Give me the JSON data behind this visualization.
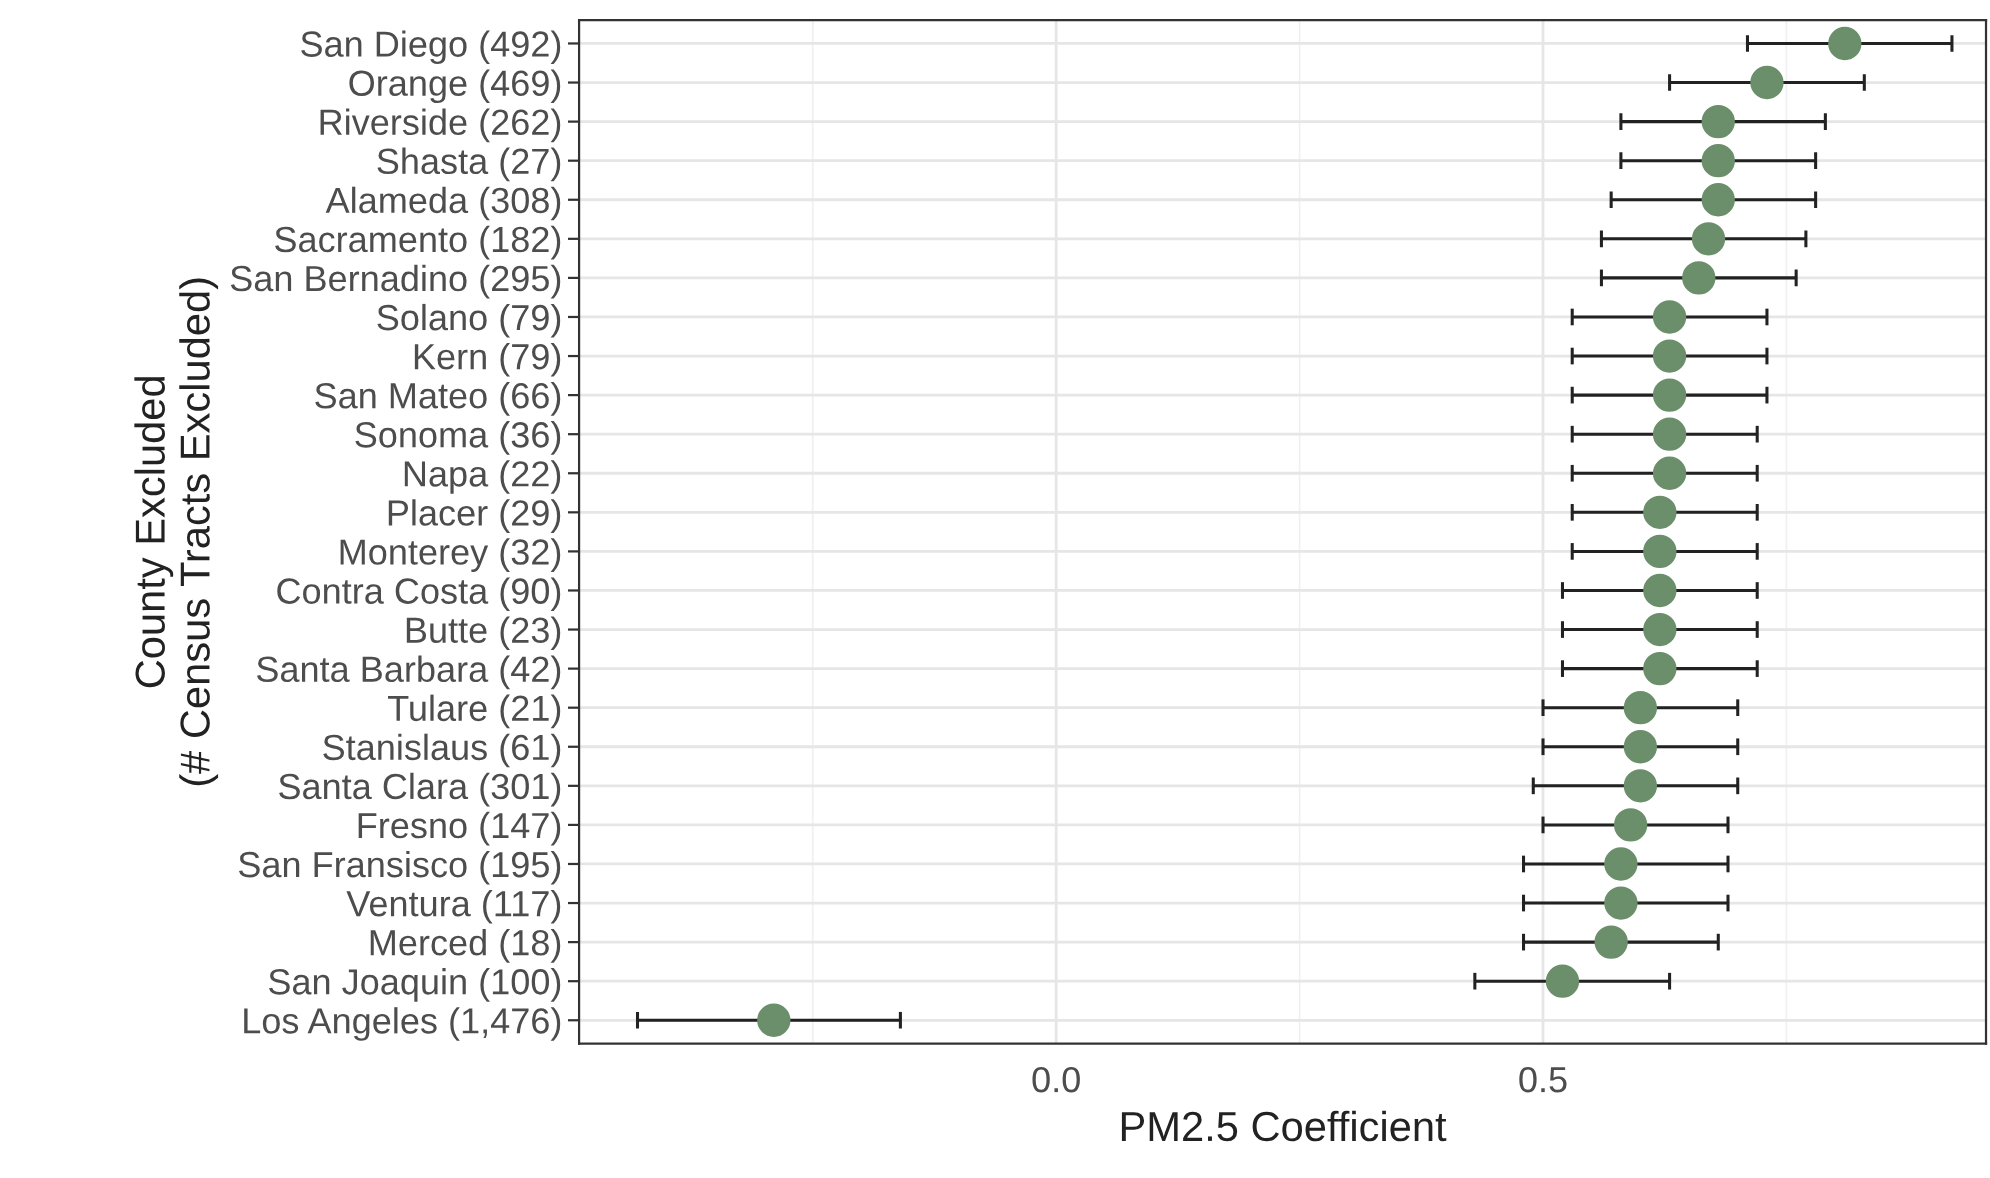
{
  "chart_data": {
    "type": "scatter",
    "orientation": "horizontal",
    "xlabel": "PM2.5 Coefficient",
    "ylabel": "County Excluded\n(# Census Tracts Excluded)",
    "categories": [
      "San Diego (492)",
      "Orange (469)",
      "Riverside (262)",
      "Shasta (27)",
      "Alameda (308)",
      "Sacramento (182)",
      "San Bernadino (295)",
      "Solano (79)",
      "Kern (79)",
      "San Mateo (66)",
      "Sonoma (36)",
      "Napa (22)",
      "Placer (29)",
      "Monterey (32)",
      "Contra Costa (90)",
      "Butte (23)",
      "Santa Barbara (42)",
      "Tulare (21)",
      "Stanislaus (61)",
      "Santa Clara (301)",
      "Fresno (147)",
      "San Fransisco (195)",
      "Ventura (117)",
      "Merced (18)",
      "San Joaquin (100)",
      "Los Angeles (1,476)"
    ],
    "values": [
      0.81,
      0.73,
      0.68,
      0.68,
      0.68,
      0.67,
      0.66,
      0.63,
      0.63,
      0.63,
      0.63,
      0.63,
      0.62,
      0.62,
      0.62,
      0.62,
      0.62,
      0.6,
      0.6,
      0.6,
      0.59,
      0.58,
      0.58,
      0.57,
      0.52,
      -0.29
    ],
    "errors": [
      [
        0.71,
        0.92
      ],
      [
        0.63,
        0.83
      ],
      [
        0.58,
        0.79
      ],
      [
        0.58,
        0.78
      ],
      [
        0.57,
        0.78
      ],
      [
        0.56,
        0.77
      ],
      [
        0.56,
        0.76
      ],
      [
        0.53,
        0.73
      ],
      [
        0.53,
        0.73
      ],
      [
        0.53,
        0.73
      ],
      [
        0.53,
        0.72
      ],
      [
        0.53,
        0.72
      ],
      [
        0.53,
        0.72
      ],
      [
        0.53,
        0.72
      ],
      [
        0.52,
        0.72
      ],
      [
        0.52,
        0.72
      ],
      [
        0.52,
        0.72
      ],
      [
        0.5,
        0.7
      ],
      [
        0.5,
        0.7
      ],
      [
        0.49,
        0.7
      ],
      [
        0.5,
        0.69
      ],
      [
        0.48,
        0.69
      ],
      [
        0.48,
        0.69
      ],
      [
        0.48,
        0.68
      ],
      [
        0.43,
        0.63
      ],
      [
        -0.43,
        -0.16
      ]
    ],
    "color": "#6b8e6b",
    "marker": "circle",
    "grid": true,
    "xlim": [
      -0.49,
      0.955
    ],
    "xticks": [
      {
        "value": 0,
        "label": "0.0"
      },
      {
        "value": 0.5,
        "label": "0.5"
      }
    ]
  }
}
